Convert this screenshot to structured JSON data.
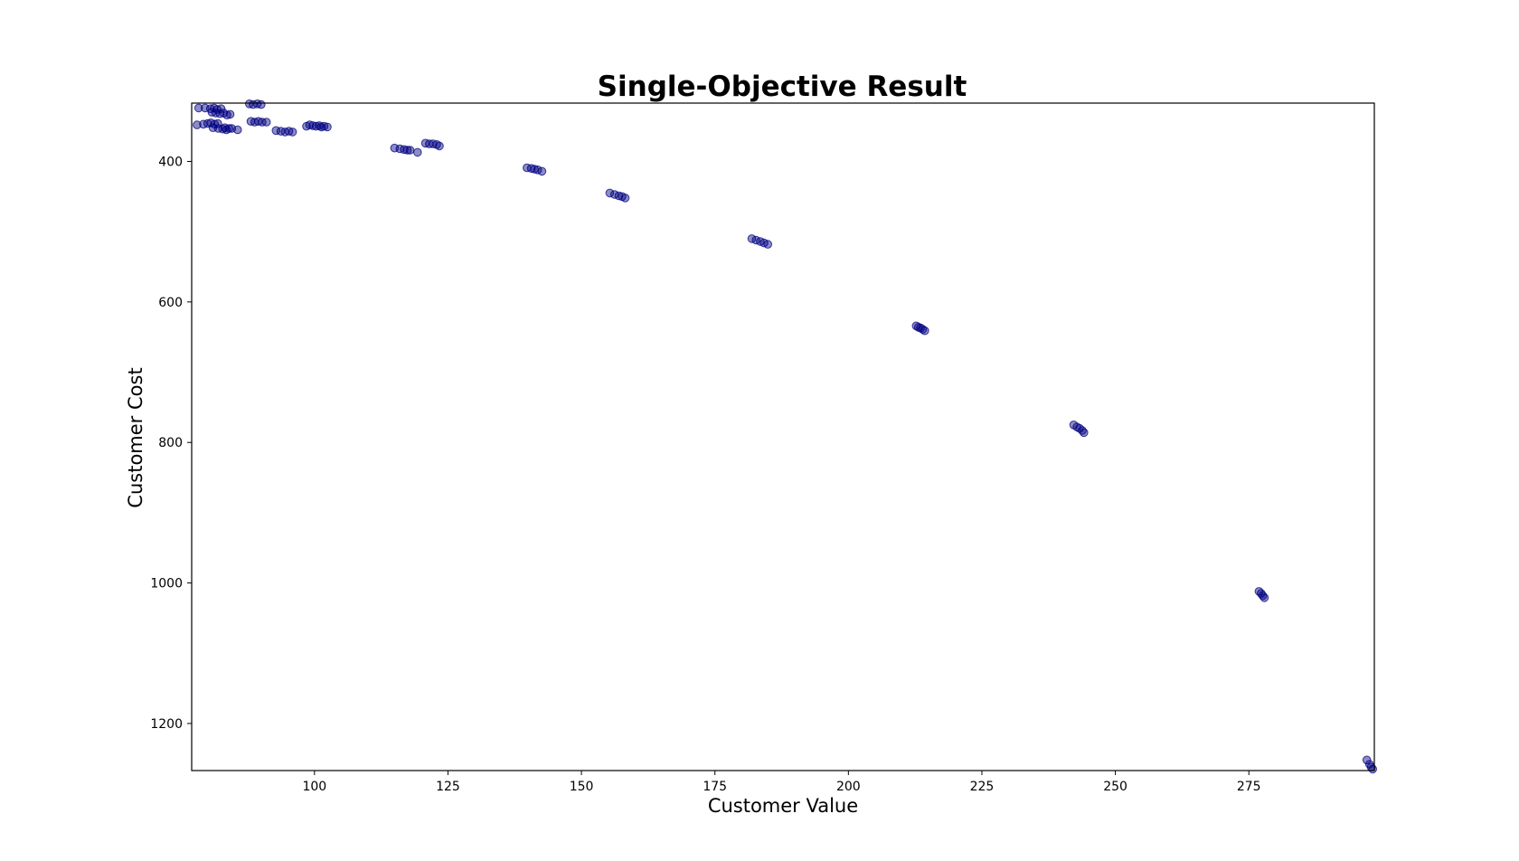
{
  "chart_data": {
    "type": "scatter",
    "title": "Single-Objective Result",
    "xlabel": "Customer Value",
    "ylabel": "Customer Cost",
    "xlim": [
      77,
      298.5
    ],
    "ylim": [
      317,
      1267
    ],
    "y_inverted": true,
    "grid": false,
    "marker_color": "#000080",
    "marker_opacity": 0.45,
    "x_ticks": [
      100,
      125,
      150,
      175,
      200,
      225,
      250,
      275
    ],
    "y_ticks": [
      400,
      600,
      800,
      1000,
      1200
    ],
    "points": [
      [
        78.3,
        324
      ],
      [
        79.5,
        324
      ],
      [
        80.5,
        325
      ],
      [
        81.2,
        324
      ],
      [
        81.8,
        326
      ],
      [
        82.5,
        325
      ],
      [
        80.8,
        330
      ],
      [
        81.5,
        331
      ],
      [
        82.3,
        332
      ],
      [
        83.0,
        331
      ],
      [
        83.6,
        334
      ],
      [
        84.2,
        333
      ],
      [
        78.0,
        348
      ],
      [
        79.2,
        347
      ],
      [
        80.0,
        346
      ],
      [
        80.6,
        345
      ],
      [
        81.3,
        347
      ],
      [
        81.9,
        346
      ],
      [
        81.0,
        352
      ],
      [
        82.0,
        353
      ],
      [
        82.8,
        354
      ],
      [
        83.5,
        355
      ],
      [
        84.5,
        353
      ],
      [
        85.6,
        355
      ],
      [
        83.2,
        352
      ],
      [
        84.0,
        353
      ],
      [
        87.8,
        318
      ],
      [
        88.5,
        319
      ],
      [
        89.3,
        318
      ],
      [
        90.0,
        319
      ],
      [
        88.1,
        343
      ],
      [
        88.8,
        344
      ],
      [
        89.5,
        343
      ],
      [
        90.2,
        344
      ],
      [
        91.0,
        344
      ],
      [
        92.8,
        356
      ],
      [
        93.7,
        357
      ],
      [
        94.5,
        358
      ],
      [
        95.2,
        357
      ],
      [
        95.9,
        358
      ],
      [
        98.5,
        350
      ],
      [
        99.1,
        348
      ],
      [
        99.7,
        349
      ],
      [
        100.3,
        350
      ],
      [
        100.9,
        349
      ],
      [
        101.3,
        351
      ],
      [
        101.8,
        350
      ],
      [
        102.4,
        351
      ],
      [
        115.0,
        381
      ],
      [
        116.0,
        382
      ],
      [
        116.8,
        383
      ],
      [
        117.4,
        384
      ],
      [
        117.9,
        384
      ],
      [
        119.3,
        387
      ],
      [
        120.8,
        374
      ],
      [
        121.5,
        375
      ],
      [
        122.2,
        375
      ],
      [
        122.9,
        376
      ],
      [
        123.4,
        378
      ],
      [
        139.8,
        409
      ],
      [
        140.6,
        410
      ],
      [
        141.2,
        411
      ],
      [
        141.8,
        412
      ],
      [
        142.6,
        414
      ],
      [
        155.3,
        445
      ],
      [
        156.2,
        447
      ],
      [
        157.0,
        449
      ],
      [
        157.6,
        450
      ],
      [
        158.2,
        452
      ],
      [
        181.9,
        510
      ],
      [
        182.7,
        512
      ],
      [
        183.5,
        514
      ],
      [
        184.2,
        516
      ],
      [
        184.9,
        518
      ],
      [
        212.7,
        634
      ],
      [
        213.1,
        636
      ],
      [
        213.5,
        637
      ],
      [
        213.9,
        639
      ],
      [
        214.3,
        641
      ],
      [
        242.2,
        775
      ],
      [
        242.8,
        778
      ],
      [
        243.3,
        780
      ],
      [
        243.8,
        783
      ],
      [
        244.1,
        786
      ],
      [
        276.9,
        1012
      ],
      [
        277.3,
        1015
      ],
      [
        277.6,
        1018
      ],
      [
        277.9,
        1021
      ],
      [
        297.1,
        1252
      ],
      [
        297.6,
        1258
      ],
      [
        297.9,
        1262
      ],
      [
        298.2,
        1265
      ]
    ]
  }
}
